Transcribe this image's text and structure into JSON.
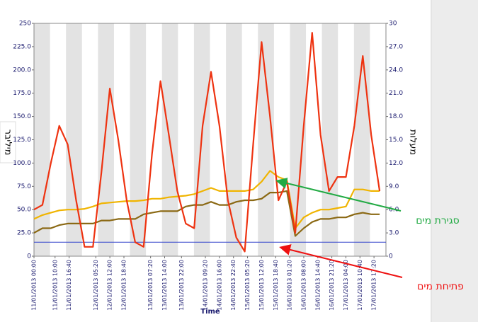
{
  "chart_data": {
    "type": "line",
    "x_label": "Time",
    "y_label": "מיליבר",
    "y2_label": "מעלות",
    "x": [
      0,
      4,
      8,
      12,
      16,
      20,
      24,
      28,
      32,
      36,
      40,
      44,
      48,
      52,
      56,
      60,
      64,
      68,
      72,
      76,
      80,
      84,
      88,
      92,
      96,
      100,
      104,
      108,
      112,
      116,
      120,
      124,
      128,
      132,
      136,
      140,
      144,
      148,
      152,
      156,
      160,
      164
    ],
    "xlim": [
      0,
      167
    ],
    "xticks": [
      {
        "value": 0,
        "label": "11/01/2013 00:00"
      },
      {
        "value": 10,
        "label": "11/01/2013 10:00"
      },
      {
        "value": 16.67,
        "label": "11/01/2013 16:40"
      },
      {
        "value": 29.33,
        "label": "12/01/2013 05:20"
      },
      {
        "value": 36,
        "label": "12/01/2013 12:00"
      },
      {
        "value": 42.67,
        "label": "12/01/2013 18:40"
      },
      {
        "value": 55.33,
        "label": "13/01/2013 07:20"
      },
      {
        "value": 62,
        "label": "13/01/2013 14:00"
      },
      {
        "value": 70,
        "label": "13/01/2013 22:00"
      },
      {
        "value": 81.33,
        "label": "14/01/2013 09:20"
      },
      {
        "value": 88,
        "label": "14/01/2013 16:00"
      },
      {
        "value": 94.67,
        "label": "14/01/2013 22:40"
      },
      {
        "value": 101.33,
        "label": "15/01/2013 05:20"
      },
      {
        "value": 108,
        "label": "15/01/2013 12:00"
      },
      {
        "value": 114.67,
        "label": "15/01/2013 18:40"
      },
      {
        "value": 121.33,
        "label": "16/01/2013 01:20"
      },
      {
        "value": 128,
        "label": "16/01/2013 08:00"
      },
      {
        "value": 134.67,
        "label": "16/01/2013 14:40"
      },
      {
        "value": 141.33,
        "label": "16/01/2013 21:20"
      },
      {
        "value": 148,
        "label": "17/01/2013 04:00"
      },
      {
        "value": 154.67,
        "label": "17/01/2013 10:40"
      },
      {
        "value": 161.33,
        "label": "17/01/2013 17:20"
      }
    ],
    "ylim": [
      0,
      250
    ],
    "yticks": [
      0,
      {
        "value": 25,
        "label": "25.0"
      },
      {
        "value": 50,
        "label": "50.0"
      },
      {
        "value": 75,
        "label": "75.0"
      },
      {
        "value": 100,
        "label": "100.0"
      },
      {
        "value": 125,
        "label": "125.0"
      },
      {
        "value": 150,
        "label": "150.0"
      },
      {
        "value": 175,
        "label": "175.0"
      },
      {
        "value": 200,
        "label": "200.0"
      },
      {
        "value": 225,
        "label": "225.0"
      },
      250
    ],
    "y2lim": [
      0,
      30
    ],
    "y2ticks": [
      0,
      {
        "value": 3,
        "label": "3.0"
      },
      {
        "value": 6,
        "label": "6.0"
      },
      {
        "value": 9,
        "label": "9.0"
      },
      {
        "value": 12,
        "label": "12.0"
      },
      {
        "value": 15,
        "label": "15.0"
      },
      {
        "value": 18,
        "label": "18.0"
      },
      {
        "value": 21,
        "label": "21.0"
      },
      {
        "value": 24,
        "label": "24.0"
      },
      {
        "value": 27,
        "label": "27.0"
      },
      30
    ],
    "series": [
      {
        "color": "#f0b400",
        "axis": "y2",
        "values": [
          4.8,
          5.3,
          5.6,
          5.9,
          6.0,
          6.0,
          6.1,
          6.4,
          6.8,
          6.9,
          7.0,
          7.1,
          7.1,
          7.2,
          7.4,
          7.4,
          7.6,
          7.7,
          7.8,
          8.0,
          8.4,
          8.8,
          8.4,
          8.4,
          8.4,
          8.4,
          8.6,
          9.6,
          11.0,
          10.2,
          9.8,
          3.6,
          5.0,
          5.6,
          6.0,
          6.0,
          6.2,
          6.4,
          8.6,
          8.6,
          8.4,
          8.4
        ]
      },
      {
        "color": "#8b6914",
        "axis": "y2",
        "values": [
          3.0,
          3.6,
          3.6,
          4.0,
          4.2,
          4.2,
          4.2,
          4.2,
          4.6,
          4.6,
          4.8,
          4.8,
          4.8,
          5.4,
          5.6,
          5.8,
          5.8,
          5.8,
          6.4,
          6.6,
          6.6,
          7.0,
          6.6,
          6.6,
          7.0,
          7.2,
          7.2,
          7.4,
          8.2,
          8.2,
          8.4,
          2.6,
          3.6,
          4.4,
          4.8,
          4.8,
          5.0,
          5.0,
          5.4,
          5.6,
          5.4,
          5.4
        ]
      },
      {
        "color": "#ee3311",
        "values": [
          50,
          55,
          100,
          140,
          120,
          60,
          10,
          10,
          90,
          180,
          125,
          60,
          15,
          10,
          110,
          188,
          130,
          70,
          35,
          30,
          140,
          198,
          140,
          60,
          20,
          5,
          120,
          230,
          150,
          60,
          80,
          25,
          140,
          240,
          130,
          70,
          85,
          85,
          140,
          215,
          130,
          70
        ]
      }
    ],
    "hlines": [
      {
        "value": 15,
        "color": "#3344cc"
      }
    ],
    "annotations": [
      {
        "text": "סגירת מים",
        "color": "#22aa44"
      },
      {
        "text": "פתיחת מים",
        "color": "#ee1111"
      }
    ]
  }
}
